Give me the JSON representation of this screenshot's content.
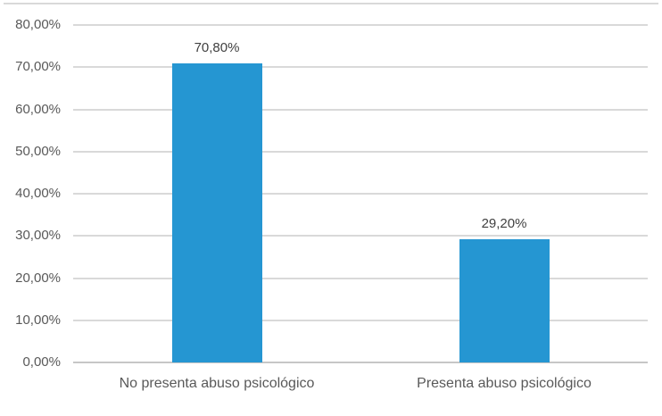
{
  "chart_data": {
    "type": "bar",
    "title": "",
    "xlabel": "",
    "ylabel": "",
    "categories": [
      "No presenta abuso psicológico",
      "Presenta abuso psicológico"
    ],
    "values": [
      70.8,
      29.2
    ],
    "data_labels": [
      "70,80%",
      "29,20%"
    ],
    "yticks": [
      "0,00%",
      "10,00%",
      "20,00%",
      "30,00%",
      "40,00%",
      "50,00%",
      "60,00%",
      "70,00%",
      "80,00%"
    ],
    "ytick_values": [
      0,
      10,
      20,
      30,
      40,
      50,
      60,
      70,
      80
    ],
    "ylim": [
      0,
      80
    ],
    "grid": "horizontal",
    "legend": "none"
  },
  "colors": {
    "bar": "#2596D2",
    "gridline": "#D9D9D9",
    "axis_line": "#C6C6C6",
    "tick_label": "#595959",
    "data_label": "#404040",
    "category_label": "#595959",
    "top_border": "#D9D9D9",
    "background": "#FFFFFF"
  }
}
